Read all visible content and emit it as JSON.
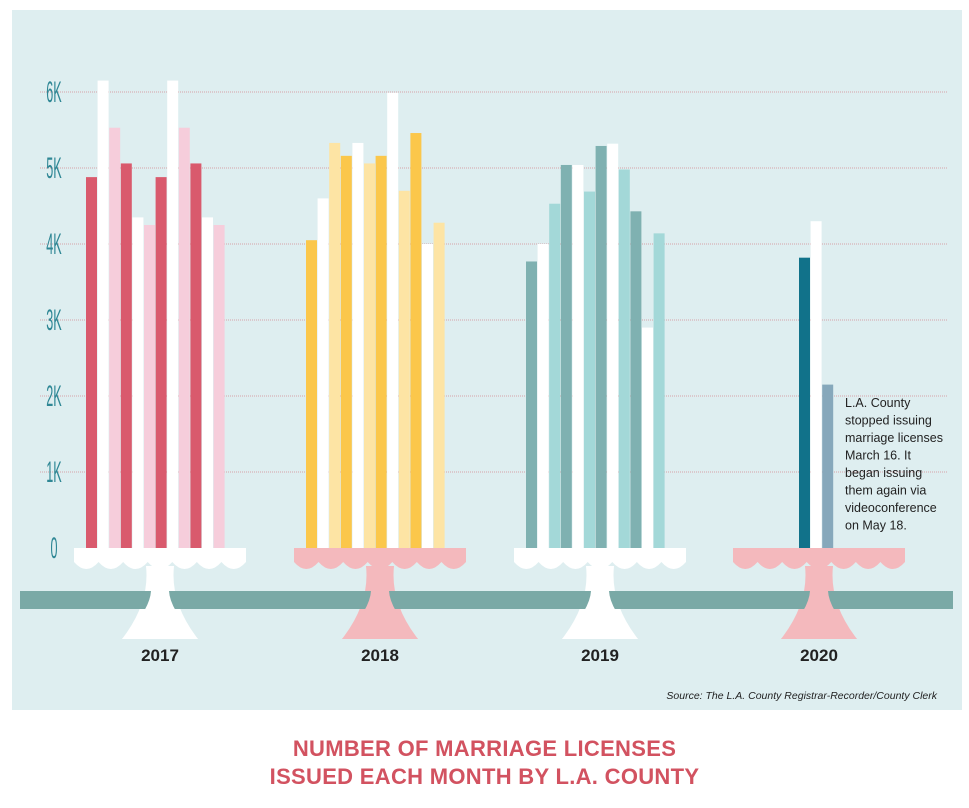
{
  "chart_data": {
    "type": "bar",
    "title": "NUMBER OF MARRIAGE LICENSES ISSUED EACH MONTH BY L.A. COUNTY",
    "title_lines": [
      "NUMBER OF MARRIAGE LICENSES",
      "ISSUED EACH MONTH BY L.A. COUNTY"
    ],
    "source": "Source: The L.A. County Registrar-Recorder/County Clerk",
    "ylim": [
      0,
      6000
    ],
    "yticks": [
      {
        "value": 0,
        "label": "0"
      },
      {
        "value": 1000,
        "label": "1K"
      },
      {
        "value": 2000,
        "label": "2K"
      },
      {
        "value": 3000,
        "label": "3K"
      },
      {
        "value": 4000,
        "label": "4K"
      },
      {
        "value": 5000,
        "label": "5K"
      },
      {
        "value": 6000,
        "label": "6K"
      }
    ],
    "grid": true,
    "series": [
      {
        "name": "2017",
        "palette": [
          "#d95a6d",
          "#ffffff",
          "#f6cddb",
          "#d95a6d",
          "#ffffff",
          "#f6cddb",
          "#d95a6d",
          "#ffffff",
          "#f6cddb",
          "#d95a6d",
          "#ffffff",
          "#f6cddb"
        ],
        "values": [
          4880,
          6150,
          5530,
          5060,
          4350,
          4250,
          4880,
          6150,
          5530,
          5060,
          4350,
          4250
        ]
      },
      {
        "name": "2018",
        "palette": [
          "#fbc74b",
          "#ffffff",
          "#fde4a4",
          "#fbc74b",
          "#ffffff",
          "#fde4a4",
          "#fbc74b",
          "#ffffff",
          "#fde4a4",
          "#fbc74b",
          "#ffffff",
          "#fde4a4"
        ],
        "values": [
          4050,
          4600,
          5330,
          5160,
          5330,
          5060,
          5160,
          5990,
          4700,
          5460,
          4000,
          4280
        ]
      },
      {
        "name": "2019",
        "palette": [
          "#7fb1b1",
          "#ffffff",
          "#a3d8d8",
          "#7fb1b1",
          "#ffffff",
          "#a3d8d8",
          "#7fb1b1",
          "#ffffff",
          "#a3d8d8",
          "#7fb1b1",
          "#ffffff",
          "#a3d8d8"
        ],
        "values": [
          3770,
          4000,
          4530,
          5040,
          5040,
          4690,
          5290,
          5320,
          4980,
          4430,
          2900,
          4140
        ]
      },
      {
        "name": "2020",
        "palette": [
          "#11728a",
          "#ffffff",
          "#86a8bb"
        ],
        "values": [
          3820,
          4300,
          2150
        ]
      }
    ],
    "annotation": [
      "L.A. County",
      "stopped issuing",
      "marriage licenses",
      "March 16. It",
      "began issuing",
      "them again via",
      "videoconference",
      "on May 18."
    ],
    "stand_colors": {
      "2017": "#ffffff",
      "2018": "#f4b9bd",
      "2019": "#ffffff",
      "2020": "#f4b9bd"
    },
    "gridline_color": "#d7a3a7",
    "ground_color": "#7aa9a6"
  }
}
